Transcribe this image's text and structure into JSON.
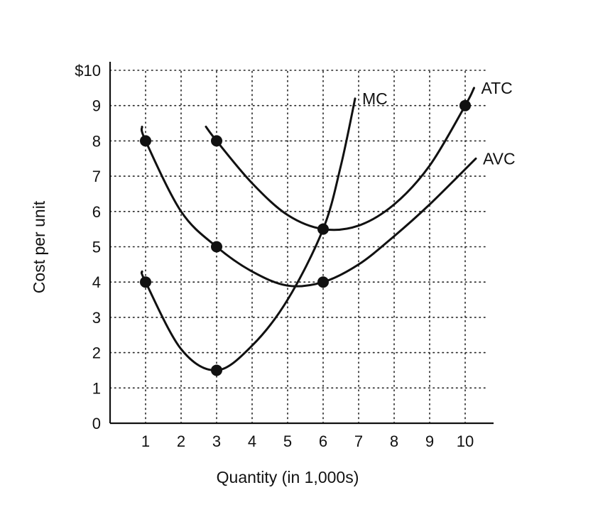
{
  "chart_data": {
    "type": "line",
    "title": "",
    "xlabel": "Quantity (in 1,000s)",
    "ylabel": "Cost per unit",
    "xlim": [
      0,
      10.6
    ],
    "ylim": [
      0,
      10
    ],
    "grid": true,
    "x_ticks": [
      {
        "value": 1,
        "label": "1"
      },
      {
        "value": 2,
        "label": "2"
      },
      {
        "value": 3,
        "label": "3"
      },
      {
        "value": 4,
        "label": "4"
      },
      {
        "value": 5,
        "label": "5"
      },
      {
        "value": 6,
        "label": "6"
      },
      {
        "value": 7,
        "label": "7"
      },
      {
        "value": 8,
        "label": "8"
      },
      {
        "value": 9,
        "label": "9"
      },
      {
        "value": 10,
        "label": "10"
      }
    ],
    "y_ticks": [
      {
        "value": 0,
        "label": "0"
      },
      {
        "value": 1,
        "label": "1"
      },
      {
        "value": 2,
        "label": "2"
      },
      {
        "value": 3,
        "label": "3"
      },
      {
        "value": 4,
        "label": "4"
      },
      {
        "value": 5,
        "label": "5"
      },
      {
        "value": 6,
        "label": "6"
      },
      {
        "value": 7,
        "label": "7"
      },
      {
        "value": 8,
        "label": "8"
      },
      {
        "value": 9,
        "label": "9"
      },
      {
        "value": 10,
        "label": "$10"
      }
    ],
    "series": [
      {
        "name": "MC",
        "curve": [
          [
            0.9,
            4.3
          ],
          [
            1,
            4
          ],
          [
            2,
            2.1
          ],
          [
            3,
            1.5
          ],
          [
            4,
            2.2
          ],
          [
            5,
            3.5
          ],
          [
            6,
            5.5
          ],
          [
            6.5,
            7.3
          ],
          [
            6.9,
            9.2
          ]
        ],
        "points": [
          [
            1,
            4
          ],
          [
            3,
            1.5
          ]
        ]
      },
      {
        "name": "AVC",
        "curve": [
          [
            0.9,
            8.4
          ],
          [
            1,
            8
          ],
          [
            2,
            6
          ],
          [
            3,
            5
          ],
          [
            4,
            4.3
          ],
          [
            5,
            3.9
          ],
          [
            6,
            4
          ],
          [
            7,
            4.5
          ],
          [
            8,
            5.3
          ],
          [
            9,
            6.2
          ],
          [
            10.3,
            7.5
          ]
        ],
        "points": [
          [
            1,
            8
          ],
          [
            3,
            5
          ],
          [
            6,
            4
          ]
        ]
      },
      {
        "name": "ATC",
        "curve": [
          [
            2.7,
            8.4
          ],
          [
            3,
            8
          ],
          [
            4,
            6.8
          ],
          [
            5,
            5.9
          ],
          [
            6,
            5.5
          ],
          [
            7,
            5.6
          ],
          [
            8,
            6.2
          ],
          [
            9,
            7.3
          ],
          [
            10,
            9
          ],
          [
            10.25,
            9.5
          ]
        ],
        "points": [
          [
            3,
            8
          ],
          [
            6,
            5.5
          ],
          [
            10,
            9
          ]
        ]
      }
    ]
  }
}
